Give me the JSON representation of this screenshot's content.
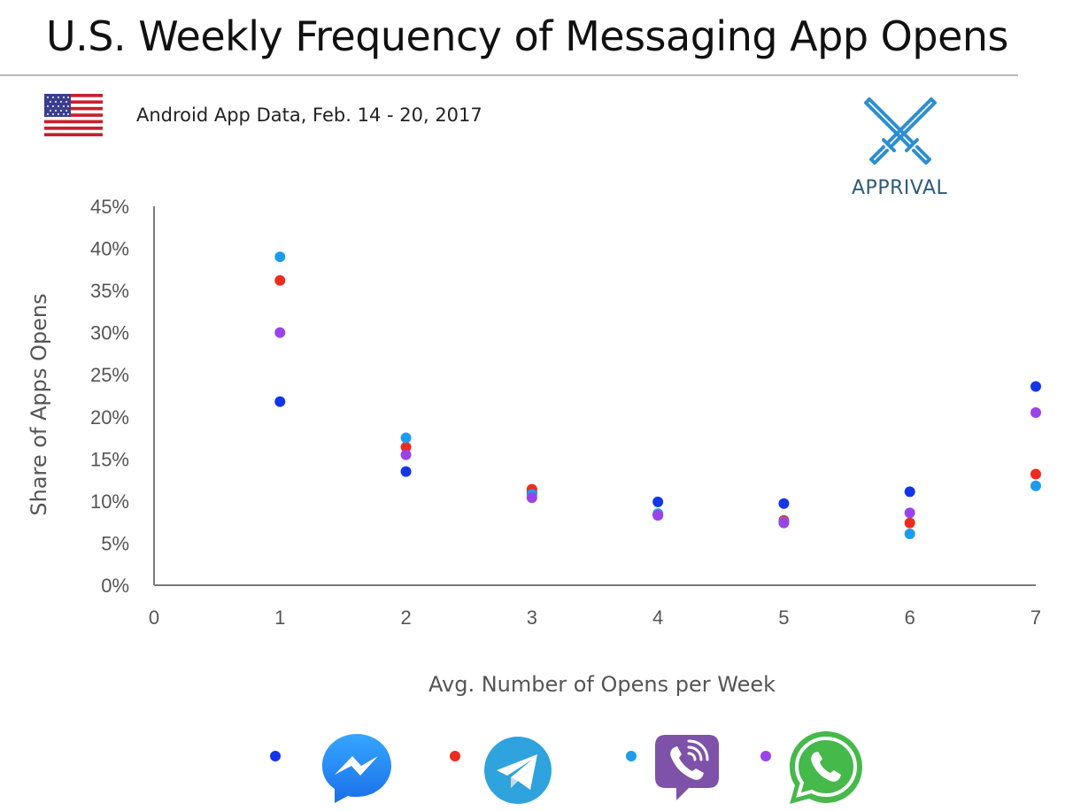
{
  "header": {
    "title": "U.S. Weekly Frequency of Messaging App Opens",
    "subtitle": "Android App Data, Feb. 14 - 20, 2017",
    "brand": "APPRIVAL"
  },
  "colors": {
    "messenger": "#1436e8",
    "telegram": "#ee2b1f",
    "viber": "#1e9cec",
    "whatsapp": "#9a44e8",
    "axis": "#7a7a7a",
    "brand": "#2d8fd0"
  },
  "legend": [
    {
      "icon": "messenger-icon",
      "color_key": "messenger"
    },
    {
      "icon": "telegram-icon",
      "color_key": "telegram"
    },
    {
      "icon": "viber-icon",
      "color_key": "viber"
    },
    {
      "icon": "whatsapp-icon",
      "color_key": "whatsapp"
    }
  ],
  "chart_data": {
    "type": "scatter",
    "title": "U.S. Weekly Frequency of Messaging App Opens",
    "subtitle": "Android App Data, Feb. 14 - 20, 2017",
    "xlabel": "Avg. Number of Opens per Week",
    "ylabel": "Share of Apps Opens",
    "xlim": [
      0,
      7
    ],
    "ylim": [
      0,
      45
    ],
    "x_ticks": [
      "0",
      "1",
      "2",
      "3",
      "4",
      "5",
      "6",
      "7"
    ],
    "y_ticks": [
      "0%",
      "5%",
      "10%",
      "15%",
      "20%",
      "25%",
      "30%",
      "35%",
      "40%",
      "45%"
    ],
    "grid": false,
    "legend_placement": "bottom",
    "x": [
      1,
      2,
      3,
      4,
      5,
      6,
      7
    ],
    "series": [
      {
        "color_key": "messenger",
        "values": [
          21.8,
          13.5,
          11.0,
          9.9,
          9.7,
          11.1,
          23.6
        ]
      },
      {
        "color_key": "telegram",
        "values": [
          36.2,
          16.4,
          11.4,
          8.3,
          7.7,
          7.4,
          13.2
        ]
      },
      {
        "color_key": "viber",
        "values": [
          39.0,
          17.5,
          10.8,
          8.5,
          7.5,
          6.1,
          11.8
        ]
      },
      {
        "color_key": "whatsapp",
        "values": [
          30.0,
          15.5,
          10.4,
          8.3,
          7.4,
          8.6,
          20.5
        ]
      }
    ]
  }
}
